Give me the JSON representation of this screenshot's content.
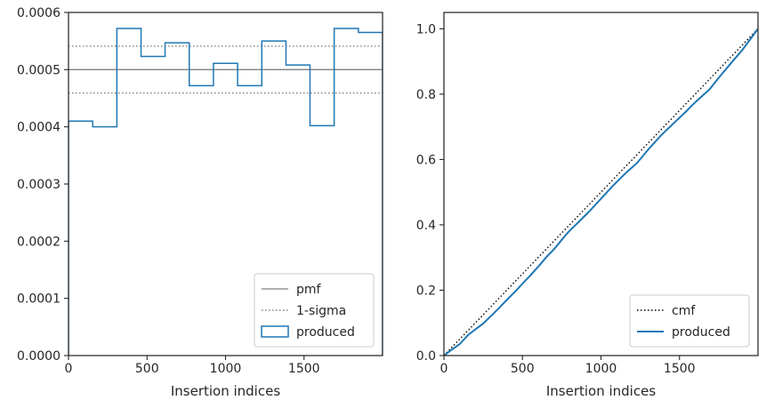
{
  "chart_data": [
    {
      "type": "line",
      "subtype": "step-histogram",
      "xlabel": "Insertion indices",
      "ylabel": "",
      "xlim": [
        0,
        2000
      ],
      "ylim": [
        0,
        0.0006
      ],
      "x_ticks": [
        0,
        500,
        1000,
        1500
      ],
      "y_ticks": [
        0.0,
        0.0001,
        0.0002,
        0.0003,
        0.0004,
        0.0005,
        0.0006
      ],
      "y_tick_labels": [
        "0.0000",
        "0.0001",
        "0.0002",
        "0.0003",
        "0.0004",
        "0.0005",
        "0.0006"
      ],
      "legend_position": "lower right",
      "series": [
        {
          "name": "pmf",
          "kind": "hline",
          "value": 0.0005,
          "color": "#808080",
          "style": "solid"
        },
        {
          "name": "1-sigma",
          "kind": "hlines",
          "values": [
            0.000541,
            0.000459
          ],
          "color": "#808080",
          "style": "dotted"
        },
        {
          "name": "produced",
          "kind": "step",
          "color": "#1f77b4",
          "bin_edges": [
            0,
            154,
            308,
            462,
            615,
            769,
            923,
            1077,
            1231,
            1385,
            1538,
            1692,
            1846,
            2000
          ],
          "values": [
            0.00041,
            0.0004,
            0.000572,
            0.000523,
            0.000547,
            0.000472,
            0.000511,
            0.000472,
            0.00055,
            0.000508,
            0.000402,
            0.000572,
            0.000565
          ]
        }
      ],
      "grid": false
    },
    {
      "type": "line",
      "xlabel": "Insertion indices",
      "ylabel": "",
      "xlim": [
        0,
        2000
      ],
      "ylim": [
        0,
        1.05
      ],
      "x_ticks": [
        0,
        500,
        1000,
        1500
      ],
      "y_ticks": [
        0.0,
        0.2,
        0.4,
        0.6,
        0.8,
        1.0
      ],
      "y_tick_labels": [
        "0.0",
        "0.2",
        "0.4",
        "0.6",
        "0.8",
        "1.0"
      ],
      "legend_position": "lower right",
      "series": [
        {
          "name": "cmf",
          "x": [
            0,
            2000
          ],
          "y": [
            0,
            1.0
          ],
          "color": "#000000",
          "style": "dotted"
        },
        {
          "name": "produced",
          "color": "#1f77b4",
          "style": "solid",
          "x": [
            0,
            50,
            100,
            154,
            200,
            250,
            308,
            350,
            400,
            462,
            500,
            550,
            615,
            650,
            700,
            769,
            800,
            850,
            923,
            1000,
            1077,
            1150,
            1231,
            1300,
            1385,
            1450,
            1538,
            1600,
            1692,
            1750,
            1846,
            1900,
            2000
          ],
          "y": [
            0,
            0.018,
            0.035,
            0.063,
            0.08,
            0.098,
            0.125,
            0.145,
            0.17,
            0.2,
            0.22,
            0.245,
            0.28,
            0.3,
            0.325,
            0.365,
            0.382,
            0.405,
            0.44,
            0.48,
            0.52,
            0.555,
            0.59,
            0.63,
            0.675,
            0.705,
            0.745,
            0.775,
            0.815,
            0.85,
            0.905,
            0.935,
            1.0
          ]
        }
      ],
      "grid": false
    }
  ]
}
